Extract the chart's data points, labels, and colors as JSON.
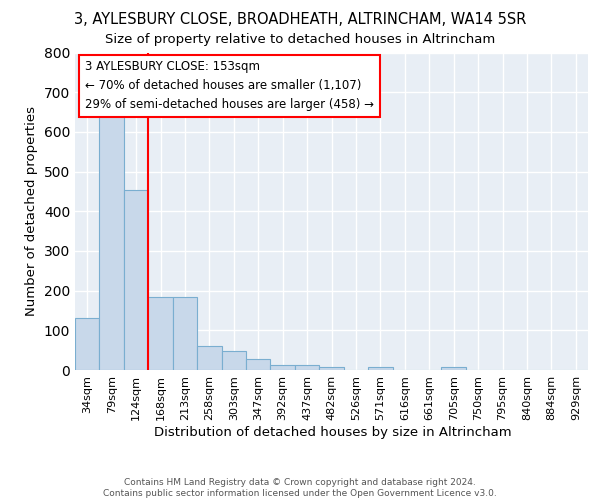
{
  "title1": "3, AYLESBURY CLOSE, BROADHEATH, ALTRINCHAM, WA14 5SR",
  "title2": "Size of property relative to detached houses in Altrincham",
  "xlabel": "Distribution of detached houses by size in Altrincham",
  "ylabel": "Number of detached properties",
  "categories": [
    "34sqm",
    "79sqm",
    "124sqm",
    "168sqm",
    "213sqm",
    "258sqm",
    "303sqm",
    "347sqm",
    "392sqm",
    "437sqm",
    "482sqm",
    "526sqm",
    "571sqm",
    "616sqm",
    "661sqm",
    "705sqm",
    "750sqm",
    "795sqm",
    "840sqm",
    "884sqm",
    "929sqm"
  ],
  "values": [
    130,
    660,
    453,
    185,
    185,
    60,
    48,
    28,
    13,
    13,
    8,
    0,
    7,
    0,
    0,
    8,
    0,
    0,
    0,
    0,
    0
  ],
  "bar_color": "#c8d8ea",
  "bar_edge_color": "#7aaed0",
  "bar_width": 1.0,
  "annotation_title": "3 AYLESBURY CLOSE: 153sqm",
  "annotation_line1": "← 70% of detached houses are smaller (1,107)",
  "annotation_line2": "29% of semi-detached houses are larger (458) →",
  "footnote": "Contains HM Land Registry data © Crown copyright and database right 2024.\nContains public sector information licensed under the Open Government Licence v3.0.",
  "ylim": [
    0,
    800
  ],
  "background_color": "#e8eef5",
  "grid_color": "#ffffff",
  "title_fontsize": 10.5,
  "subtitle_fontsize": 9.5,
  "axis_label_fontsize": 9.5,
  "tick_fontsize": 8,
  "annotation_fontsize": 8.5,
  "footnote_fontsize": 6.5
}
